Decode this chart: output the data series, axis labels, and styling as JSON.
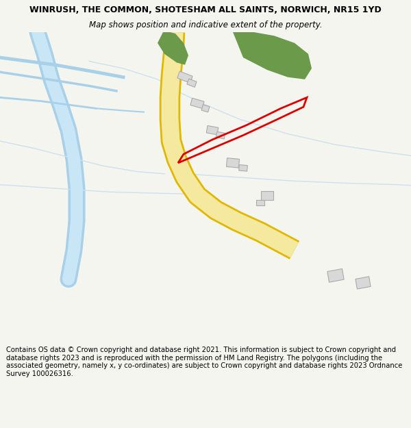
{
  "title": "WINRUSH, THE COMMON, SHOTESHAM ALL SAINTS, NORWICH, NR15 1YD",
  "subtitle": "Map shows position and indicative extent of the property.",
  "footer": "Contains OS data © Crown copyright and database right 2021. This information is subject to Crown copyright and database rights 2023 and is reproduced with the permission of HM Land Registry. The polygons (including the associated geometry, namely x, y co-ordinates) are subject to Crown copyright and database rights 2023 Ordnance Survey 100026316.",
  "bg_color": "#f5f5f0",
  "map_bg": "#ffffff",
  "road_fill": "#f5e9a0",
  "road_edge": "#e0b800",
  "river_color": "#a8d0e8",
  "river_light": "#c8e6f5",
  "green_color": "#6a9a4a",
  "plot_color": "#dd0000",
  "building_fill": "#d8d8d8",
  "building_edge": "#aaaaaa",
  "path_color": "#ccdde8",
  "field_line": "#cce0ee"
}
